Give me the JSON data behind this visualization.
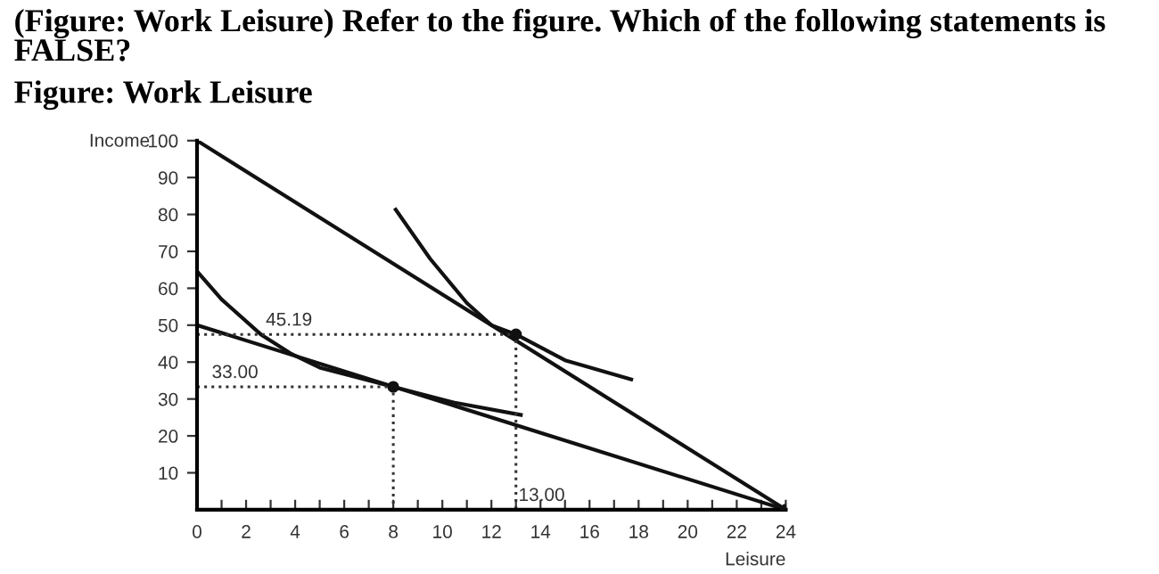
{
  "chart_data": {
    "type": "line",
    "title": "(Figure: Work Leisure) Refer to the figure. Which of the following statements is FALSE?",
    "subtitle": "Figure: Work Leisure",
    "xlabel": "Leisure",
    "ylabel": "Income",
    "series": [
      {
        "color": "#111111",
        "x": [
          0,
          24
        ],
        "values": [
          100,
          0
        ]
      },
      {
        "color": "#111111",
        "x": [
          0,
          24
        ],
        "values": [
          50,
          0
        ]
      },
      {
        "color": "#111111",
        "x": [
          8.1,
          9.5,
          11,
          12,
          13,
          15,
          17.7
        ],
        "values": [
          81.3,
          68,
          56,
          50,
          47.5,
          40.5,
          35.3
        ]
      },
      {
        "color": "#111111",
        "x": [
          0,
          1,
          2.6,
          3.8,
          5,
          8,
          10.5,
          13.2
        ],
        "values": [
          64.6,
          57,
          47.5,
          42.4,
          38.5,
          33.3,
          29,
          25.7
        ]
      },
      {
        "color": "#333333",
        "line_style": "dotted",
        "x": [
          0,
          13,
          13
        ],
        "values": [
          47.5,
          47.5,
          0
        ]
      },
      {
        "color": "#333333",
        "line_style": "dotted",
        "x": [
          0,
          8,
          8
        ],
        "values": [
          33.3,
          33.3,
          0
        ]
      },
      {
        "type": "scatter",
        "color": "#111111",
        "marker": "circle",
        "x": [
          8,
          13,
          24
        ],
        "values": [
          33.3,
          47.5,
          0
        ]
      }
    ],
    "annotations": [
      {
        "text": "45.19",
        "x": 2.7,
        "y": 47.5
      },
      {
        "text": "33.00",
        "x": 0.5,
        "y": 33.3
      },
      {
        "text": "13.00",
        "x": 13,
        "y": 0
      }
    ],
    "xlim": [
      0,
      24
    ],
    "ylim": [
      0,
      100
    ],
    "xticks": [
      0,
      {
        "value": 1,
        "label": null
      },
      2,
      {
        "value": 3,
        "label": null
      },
      4,
      {
        "value": 5,
        "label": null
      },
      6,
      {
        "value": 7,
        "label": null
      },
      8,
      {
        "value": 9,
        "label": null
      },
      10,
      {
        "value": 11,
        "label": null
      },
      12,
      {
        "value": 13,
        "label": null
      },
      14,
      {
        "value": 15,
        "label": null
      },
      16,
      {
        "value": 17,
        "label": null
      },
      18,
      {
        "value": 19,
        "label": null
      },
      20,
      {
        "value": 21,
        "label": null
      },
      22,
      {
        "value": 23,
        "label": null
      },
      24
    ],
    "yticks": [
      10,
      20,
      30,
      40,
      50,
      60,
      70,
      80,
      90,
      100
    ],
    "grid": false,
    "legend": false
  }
}
